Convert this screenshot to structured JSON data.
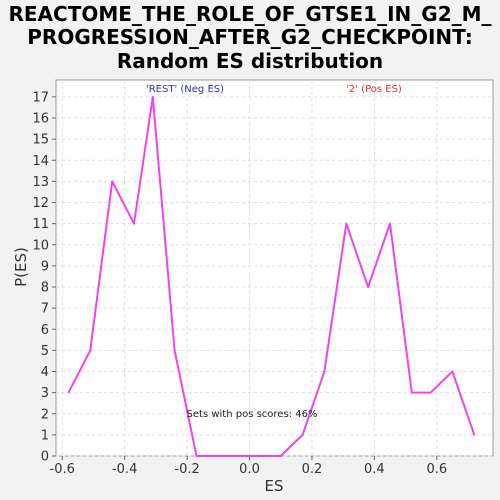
{
  "chart_data": {
    "type": "line",
    "title_lines": [
      "REACTOME_THE_ROLE_OF_GTSE1_IN_G2_M_",
      "PROGRESSION_AFTER_G2_CHECKPOINT:",
      "Random ES distribution"
    ],
    "xlabel": "ES",
    "ylabel": "P(ES)",
    "xlim": [
      -0.62,
      0.78
    ],
    "ylim": [
      0,
      17.8
    ],
    "x_ticks": [
      -0.6,
      -0.4,
      -0.2,
      0.0,
      0.2,
      0.4,
      0.6
    ],
    "x_tick_labels": [
      "-0.6",
      "-0.4",
      "-0.2",
      "0.0",
      "0.2",
      "0.4",
      "0.6"
    ],
    "y_ticks": [
      0,
      1,
      2,
      3,
      4,
      5,
      6,
      7,
      8,
      9,
      10,
      11,
      12,
      13,
      14,
      15,
      16,
      17
    ],
    "y_tick_labels": [
      "0",
      "1",
      "2",
      "3",
      "4",
      "5",
      "6",
      "7",
      "8",
      "9",
      "10",
      "11",
      "12",
      "13",
      "14",
      "15",
      "16",
      "17"
    ],
    "grid": true,
    "series": [
      {
        "color": "#ee44ee",
        "x": [
          -0.58,
          -0.51,
          -0.44,
          -0.37,
          -0.31,
          -0.24,
          -0.17,
          -0.1,
          -0.03,
          0.04,
          0.1,
          0.17,
          0.24,
          0.31,
          0.38,
          0.45,
          0.52,
          0.58,
          0.65,
          0.72
        ],
        "y": [
          3,
          5,
          13,
          11,
          17,
          5,
          0,
          0,
          0,
          0,
          0,
          1,
          4,
          11,
          8,
          11,
          3,
          3,
          4,
          1
        ]
      }
    ],
    "legend": [
      {
        "label": "'REST' (Neg ES)",
        "color": "#3333bb",
        "position": "top-left"
      },
      {
        "label": "'2' (Pos ES)",
        "color": "#dd3333",
        "position": "top-right"
      }
    ],
    "annotation": "Sets with pos scores: 46%"
  }
}
